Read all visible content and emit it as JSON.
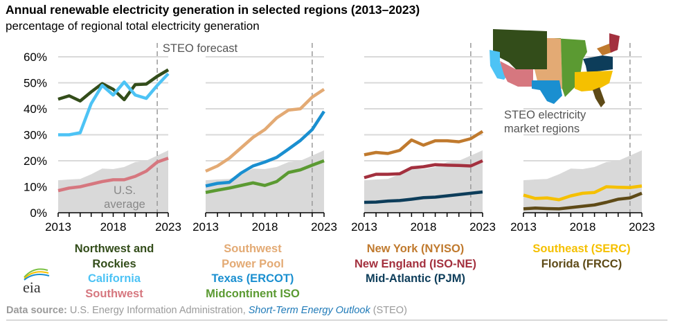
{
  "header": {
    "title": "Annual renewable electricity generation in selected regions (2013–2023)",
    "subtitle": "percentage of regional total electricity generation"
  },
  "annotations": {
    "forecast_label": "STEO forecast",
    "us_average_line1": "U.S.",
    "us_average_line2": "average",
    "map_caption_line1": "STEO electricity",
    "map_caption_line2": "market regions"
  },
  "footer": {
    "source_label": "Data source:",
    "source_text": " U.S. Energy Information Administration, ",
    "source_pub": "Short-Term Energy Outlook",
    "source_suffix": " (STEO)",
    "logo_text": "eia"
  },
  "legends": [
    [
      {
        "label": "Northwest and",
        "color": "#334d1a"
      },
      {
        "label": "Rockies",
        "color": "#334d1a"
      },
      {
        "label": "California",
        "color": "#4dc3f5"
      },
      {
        "label": "Southwest",
        "color": "#d6777f"
      }
    ],
    [
      {
        "label": "Southwest",
        "color": "#e3aa74"
      },
      {
        "label": "Power Pool",
        "color": "#e3aa74"
      },
      {
        "label": "Texas (ERCOT)",
        "color": "#1a8fd0"
      },
      {
        "label": "Midcontinent ISO",
        "color": "#5b9a32"
      }
    ],
    [
      {
        "label": "New York (NYISO)",
        "color": "#c07a2e"
      },
      {
        "label": "New England (ISO-NE)",
        "color": "#a3303e"
      },
      {
        "label": "Mid-Atlantic (PJM)",
        "color": "#0d3d5a"
      }
    ],
    [
      {
        "label": "Southeast (SERC)",
        "color": "#f5c000"
      },
      {
        "label": "Florida (FRCC)",
        "color": "#5e4a17"
      }
    ]
  ],
  "chart_data": [
    {
      "type": "line",
      "x": [
        2013,
        2014,
        2015,
        2016,
        2017,
        2018,
        2019,
        2020,
        2021,
        2022,
        2023
      ],
      "xticks": [
        "2013",
        "2018",
        "2023"
      ],
      "yticks": [
        "0%",
        "10%",
        "20%",
        "30%",
        "40%",
        "50%",
        "60%"
      ],
      "ylim": [
        0,
        60
      ],
      "forecast_start": 2022,
      "us_average": [
        12.5,
        12.8,
        13,
        14.8,
        17,
        16.8,
        17.6,
        19.5,
        20,
        22,
        24
      ],
      "series": [
        {
          "name": "Northwest and Rockies",
          "color": "#334d1a",
          "values": [
            43.7,
            45,
            43,
            46.5,
            49.7,
            47.5,
            43.5,
            49.3,
            49.5,
            52.5,
            55
          ]
        },
        {
          "name": "California",
          "color": "#4dc3f5",
          "values": [
            30,
            30,
            30.8,
            42,
            49,
            45.3,
            50.3,
            45.3,
            44,
            49,
            53.5
          ]
        },
        {
          "name": "Southwest",
          "color": "#d6777f",
          "values": [
            8.5,
            9.5,
            10,
            11,
            12,
            12.7,
            12.7,
            14,
            16,
            19.5,
            21
          ]
        }
      ]
    },
    {
      "type": "line",
      "x": [
        2013,
        2014,
        2015,
        2016,
        2017,
        2018,
        2019,
        2020,
        2021,
        2022,
        2023
      ],
      "xticks": [
        "2013",
        "2018",
        "2023"
      ],
      "ylim": [
        0,
        60
      ],
      "forecast_start": 2022,
      "us_average": [
        12.5,
        12.8,
        13,
        14.8,
        17,
        16.8,
        17.6,
        19.5,
        20,
        22,
        24
      ],
      "series": [
        {
          "name": "Southwest Power Pool",
          "color": "#e3aa74",
          "values": [
            16,
            18,
            21,
            25,
            29,
            32,
            36.5,
            39.5,
            40,
            44.5,
            47.5
          ]
        },
        {
          "name": "Texas (ERCOT)",
          "color": "#1a8fd0",
          "values": [
            10.3,
            11.3,
            11.7,
            15.3,
            18,
            19.5,
            21.3,
            24.5,
            27.8,
            32,
            39
          ]
        },
        {
          "name": "Midcontinent ISO",
          "color": "#5b9a32",
          "values": [
            7.8,
            8.7,
            9.5,
            10.5,
            11.5,
            10.5,
            12,
            15.5,
            16.5,
            18.3,
            20
          ]
        }
      ]
    },
    {
      "type": "line",
      "x": [
        2013,
        2014,
        2015,
        2016,
        2017,
        2018,
        2019,
        2020,
        2021,
        2022,
        2023
      ],
      "xticks": [
        "2013",
        "2018",
        "2023"
      ],
      "ylim": [
        0,
        60
      ],
      "forecast_start": 2022,
      "us_average": [
        12.5,
        12.8,
        13,
        14.8,
        17,
        16.8,
        17.6,
        19.5,
        20,
        22,
        24
      ],
      "series": [
        {
          "name": "New York (NYISO)",
          "color": "#c07a2e",
          "values": [
            22.3,
            23.2,
            22.8,
            24,
            28,
            26,
            27.7,
            27.7,
            27.3,
            28.5,
            31.3
          ]
        },
        {
          "name": "New England (ISO-NE)",
          "color": "#a3303e",
          "values": [
            13.5,
            14.8,
            14.8,
            15,
            17.3,
            17.7,
            18.5,
            18.3,
            18.2,
            18,
            20
          ]
        },
        {
          "name": "Mid-Atlantic (PJM)",
          "color": "#0d3d5a",
          "values": [
            4,
            4.1,
            4.5,
            4.7,
            5.2,
            5.8,
            6,
            6.5,
            7,
            7.5,
            8
          ]
        }
      ]
    },
    {
      "type": "line",
      "x": [
        2013,
        2014,
        2015,
        2016,
        2017,
        2018,
        2019,
        2020,
        2021,
        2022,
        2023
      ],
      "xticks": [
        "2013",
        "2018",
        "2023"
      ],
      "ylim": [
        0,
        60
      ],
      "forecast_start": 2022,
      "us_average": [
        12.5,
        12.8,
        13,
        14.8,
        17,
        16.8,
        17.6,
        19.5,
        20,
        22,
        24
      ],
      "series": [
        {
          "name": "Southeast (SERC)",
          "color": "#f5c000",
          "values": [
            6.8,
            5.5,
            5.7,
            5,
            6.5,
            7.5,
            7.8,
            10,
            9.8,
            9.7,
            10.3
          ]
        },
        {
          "name": "Florida (FRCC)",
          "color": "#5e4a17",
          "values": [
            1.5,
            1.8,
            1.6,
            1.5,
            2,
            2.5,
            3,
            4,
            5.2,
            5.7,
            7.5
          ]
        }
      ]
    }
  ],
  "map": {
    "regions": [
      {
        "name": "Northwest and Rockies",
        "color": "#334d1a"
      },
      {
        "name": "California",
        "color": "#4dc3f5"
      },
      {
        "name": "Southwest",
        "color": "#d6777f"
      },
      {
        "name": "Southwest Power Pool",
        "color": "#e3aa74"
      },
      {
        "name": "Texas (ERCOT)",
        "color": "#1a8fd0"
      },
      {
        "name": "Midcontinent ISO",
        "color": "#5b9a32"
      },
      {
        "name": "New York (NYISO)",
        "color": "#c07a2e"
      },
      {
        "name": "New England (ISO-NE)",
        "color": "#a3303e"
      },
      {
        "name": "Mid-Atlantic (PJM)",
        "color": "#0d3d5a"
      },
      {
        "name": "Southeast (SERC)",
        "color": "#f5c000"
      },
      {
        "name": "Florida (FRCC)",
        "color": "#5e4a17"
      }
    ]
  }
}
